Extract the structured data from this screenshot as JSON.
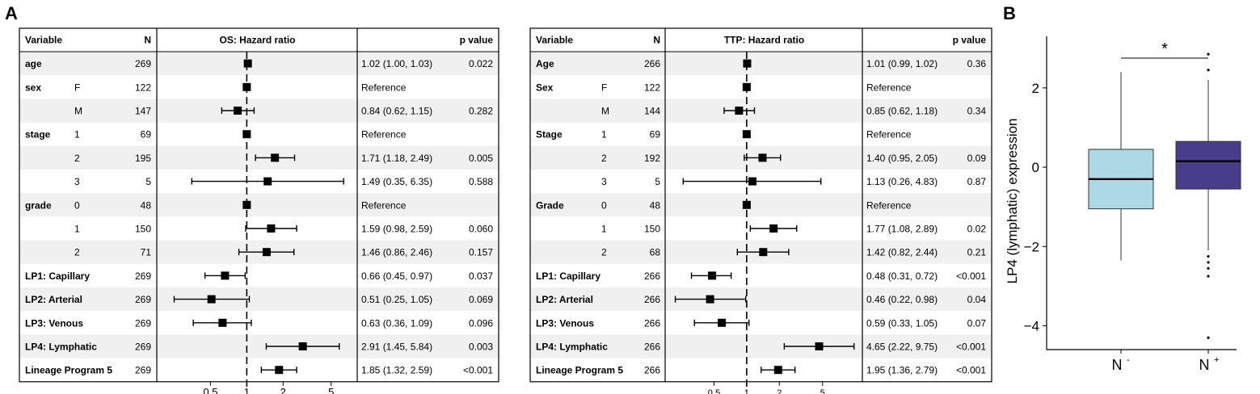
{
  "panel_labels": {
    "a": "A",
    "b": "B"
  },
  "chart_data": [
    {
      "type": "forest",
      "metric_header": "OS: Hazard ratio",
      "headers": {
        "variable": "Variable",
        "n": "N",
        "pvalue": "p value"
      },
      "axis": {
        "scale": "log",
        "ticks": [
          0.5,
          1,
          2,
          5
        ],
        "tick_labels": [
          "0.5",
          "1",
          "2",
          "5"
        ],
        "range": [
          0.2,
          7.5
        ],
        "reference": 1
      },
      "rows": [
        {
          "variable": "age",
          "level": "",
          "n": "269",
          "hr": 1.02,
          "lo": 1.0,
          "hi": 1.03,
          "ci_text": "1.02 (1.00, 1.03)",
          "p": "0.022"
        },
        {
          "variable": "sex",
          "level": "F",
          "n": "122",
          "hr": 1,
          "lo": null,
          "hi": null,
          "ci_text": "Reference",
          "p": ""
        },
        {
          "variable": "",
          "level": "M",
          "n": "147",
          "hr": 0.84,
          "lo": 0.62,
          "hi": 1.15,
          "ci_text": "0.84 (0.62, 1.15)",
          "p": "0.282"
        },
        {
          "variable": "stage",
          "level": "1",
          "n": "69",
          "hr": 1,
          "lo": null,
          "hi": null,
          "ci_text": "Reference",
          "p": ""
        },
        {
          "variable": "",
          "level": "2",
          "n": "195",
          "hr": 1.71,
          "lo": 1.18,
          "hi": 2.49,
          "ci_text": "1.71 (1.18, 2.49)",
          "p": "0.005"
        },
        {
          "variable": "",
          "level": "3",
          "n": "5",
          "hr": 1.49,
          "lo": 0.35,
          "hi": 6.35,
          "ci_text": "1.49 (0.35, 6.35)",
          "p": "0.588"
        },
        {
          "variable": "grade",
          "level": "0",
          "n": "48",
          "hr": 1,
          "lo": null,
          "hi": null,
          "ci_text": "Reference",
          "p": ""
        },
        {
          "variable": "",
          "level": "1",
          "n": "150",
          "hr": 1.59,
          "lo": 0.98,
          "hi": 2.59,
          "ci_text": "1.59 (0.98, 2.59)",
          "p": "0.060"
        },
        {
          "variable": "",
          "level": "2",
          "n": "71",
          "hr": 1.46,
          "lo": 0.86,
          "hi": 2.46,
          "ci_text": "1.46 (0.86, 2.46)",
          "p": "0.157"
        },
        {
          "variable": "LP1: Capillary",
          "level": "",
          "n": "269",
          "hr": 0.66,
          "lo": 0.45,
          "hi": 0.97,
          "ci_text": "0.66 (0.45, 0.97)",
          "p": "0.037"
        },
        {
          "variable": "LP2: Arterial",
          "level": "",
          "n": "269",
          "hr": 0.51,
          "lo": 0.25,
          "hi": 1.05,
          "ci_text": "0.51 (0.25, 1.05)",
          "p": "0.069"
        },
        {
          "variable": "LP3: Venous",
          "level": "",
          "n": "269",
          "hr": 0.63,
          "lo": 0.36,
          "hi": 1.09,
          "ci_text": "0.63 (0.36, 1.09)",
          "p": "0.096"
        },
        {
          "variable": "LP4: Lymphatic",
          "level": "",
          "n": "269",
          "hr": 2.91,
          "lo": 1.45,
          "hi": 5.84,
          "ci_text": "2.91 (1.45, 5.84)",
          "p": "0.003"
        },
        {
          "variable": "Lineage Program 5",
          "level": "",
          "n": "269",
          "hr": 1.85,
          "lo": 1.32,
          "hi": 2.59,
          "ci_text": "1.85 (1.32, 2.59)",
          "p": "<0.001"
        }
      ]
    },
    {
      "type": "forest",
      "metric_header": "TTP: Hazard ratio",
      "headers": {
        "variable": "Variable",
        "n": "N",
        "pvalue": "p value"
      },
      "axis": {
        "scale": "log",
        "ticks": [
          0.5,
          1,
          2,
          5
        ],
        "tick_labels": [
          "0.5",
          "1",
          "2",
          "5"
        ],
        "range": [
          0.2,
          10.5
        ],
        "reference": 1
      },
      "rows": [
        {
          "variable": "Age",
          "level": "",
          "n": "266",
          "hr": 1.01,
          "lo": 0.99,
          "hi": 1.02,
          "ci_text": "1.01 (0.99, 1.02)",
          "p": "0.36"
        },
        {
          "variable": "Sex",
          "level": "F",
          "n": "122",
          "hr": 1,
          "lo": null,
          "hi": null,
          "ci_text": "Reference",
          "p": ""
        },
        {
          "variable": "",
          "level": "M",
          "n": "144",
          "hr": 0.85,
          "lo": 0.62,
          "hi": 1.18,
          "ci_text": "0.85 (0.62, 1.18)",
          "p": "0.34"
        },
        {
          "variable": "Stage",
          "level": "1",
          "n": "69",
          "hr": 1,
          "lo": null,
          "hi": null,
          "ci_text": "Reference",
          "p": ""
        },
        {
          "variable": "",
          "level": "2",
          "n": "192",
          "hr": 1.4,
          "lo": 0.95,
          "hi": 2.05,
          "ci_text": "1.40 (0.95, 2.05)",
          "p": "0.09"
        },
        {
          "variable": "",
          "level": "3",
          "n": "5",
          "hr": 1.13,
          "lo": 0.26,
          "hi": 4.83,
          "ci_text": "1.13 (0.26, 4.83)",
          "p": "0.87"
        },
        {
          "variable": "Grade",
          "level": "0",
          "n": "48",
          "hr": 1,
          "lo": null,
          "hi": null,
          "ci_text": "Reference",
          "p": ""
        },
        {
          "variable": "",
          "level": "1",
          "n": "150",
          "hr": 1.77,
          "lo": 1.08,
          "hi": 2.89,
          "ci_text": "1.77 (1.08, 2.89)",
          "p": "0.02"
        },
        {
          "variable": "",
          "level": "2",
          "n": "68",
          "hr": 1.42,
          "lo": 0.82,
          "hi": 2.44,
          "ci_text": "1.42 (0.82, 2.44)",
          "p": "0.21"
        },
        {
          "variable": "LP1: Capillary",
          "level": "",
          "n": "266",
          "hr": 0.48,
          "lo": 0.31,
          "hi": 0.72,
          "ci_text": "0.48 (0.31, 0.72)",
          "p": "<0.001"
        },
        {
          "variable": "LP2: Arterial",
          "level": "",
          "n": "266",
          "hr": 0.46,
          "lo": 0.22,
          "hi": 0.98,
          "ci_text": "0.46 (0.22, 0.98)",
          "p": "0.04"
        },
        {
          "variable": "LP3: Venous",
          "level": "",
          "n": "266",
          "hr": 0.59,
          "lo": 0.33,
          "hi": 1.05,
          "ci_text": "0.59 (0.33, 1.05)",
          "p": "0.07"
        },
        {
          "variable": "LP4: Lymphatic",
          "level": "",
          "n": "266",
          "hr": 4.65,
          "lo": 2.22,
          "hi": 9.75,
          "ci_text": "4.65 (2.22, 9.75)",
          "p": "<0.001"
        },
        {
          "variable": "Lineage Program 5",
          "level": "",
          "n": "266",
          "hr": 1.95,
          "lo": 1.36,
          "hi": 2.79,
          "ci_text": "1.95 (1.36, 2.79)",
          "p": "<0.001"
        }
      ]
    },
    {
      "type": "boxplot",
      "ylabel": "LP4 (lymphatic) expression",
      "ylim": [
        -4.6,
        3.3
      ],
      "yticks": [
        -4,
        -2,
        0,
        2
      ],
      "ytick_labels": [
        "−4",
        "−2",
        "0",
        "2"
      ],
      "significance": "*",
      "groups": [
        {
          "label": "N",
          "superscript": "-",
          "color": "#add8e6",
          "min": -2.35,
          "q1": -1.05,
          "median": -0.3,
          "q3": 0.45,
          "max": 2.4,
          "outliers": []
        },
        {
          "label": "N",
          "superscript": "+",
          "color": "#483d8b",
          "min": -2.1,
          "q1": -0.55,
          "median": 0.15,
          "q3": 0.65,
          "max": 2.2,
          "outliers": [
            2.85,
            2.45,
            -2.25,
            -2.4,
            -2.55,
            -2.75,
            -4.3
          ]
        }
      ]
    }
  ]
}
